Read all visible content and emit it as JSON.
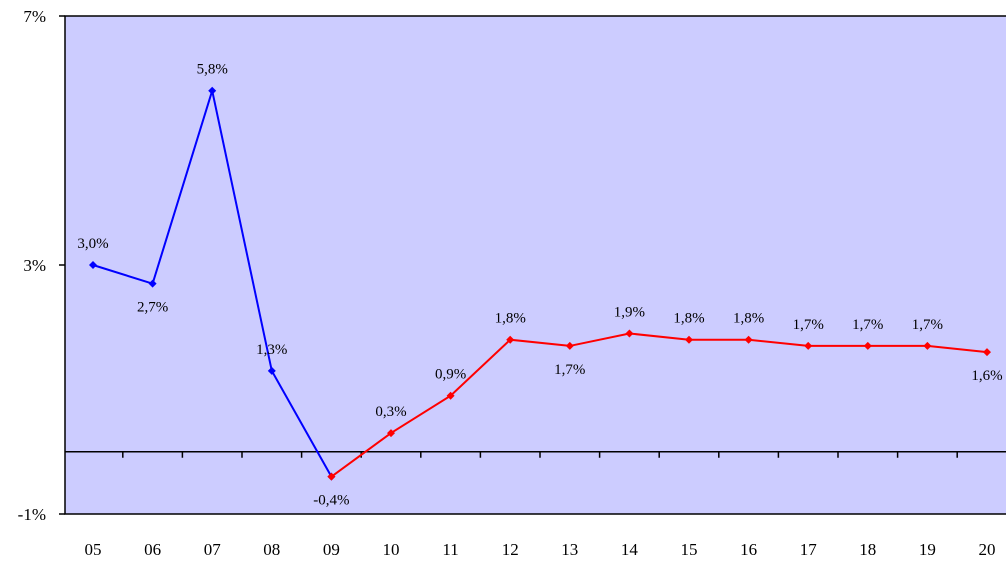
{
  "chart_data": {
    "type": "line",
    "categories": [
      "05",
      "06",
      "07",
      "08",
      "09",
      "10",
      "11",
      "12",
      "13",
      "14",
      "15",
      "16",
      "17",
      "18",
      "19",
      "20"
    ],
    "y_ticks": [
      {
        "value": 7,
        "label": "7%"
      },
      {
        "value": 3,
        "label": "3%"
      },
      {
        "value": -1,
        "label": "-1%"
      }
    ],
    "ylim": [
      -1,
      7
    ],
    "baseline": 0,
    "series": [
      {
        "color": "#0000ff",
        "x": [
          "05",
          "06",
          "07",
          "08",
          "09"
        ],
        "values": [
          3.0,
          2.7,
          5.8,
          1.3,
          -0.4
        ],
        "labels": [
          "3,0%",
          "2,7%",
          "5,8%",
          "1,3%",
          "-0,4%"
        ]
      },
      {
        "color": "#ff0000",
        "x": [
          "09",
          "10",
          "11",
          "12",
          "13",
          "14",
          "15",
          "16",
          "17",
          "18",
          "19",
          "20"
        ],
        "values": [
          -0.4,
          0.3,
          0.9,
          1.8,
          1.7,
          1.9,
          1.8,
          1.8,
          1.7,
          1.7,
          1.7,
          1.6
        ],
        "labels": [
          null,
          "0,3%",
          "0,9%",
          "1,8%",
          "1,7%",
          "1,9%",
          "1,8%",
          "1,8%",
          "1,7%",
          "1,7%",
          "1,7%",
          "1,6%"
        ]
      }
    ],
    "plot_background": "#ccccff",
    "grid": false,
    "title": "",
    "xlabel": "",
    "ylabel": ""
  }
}
